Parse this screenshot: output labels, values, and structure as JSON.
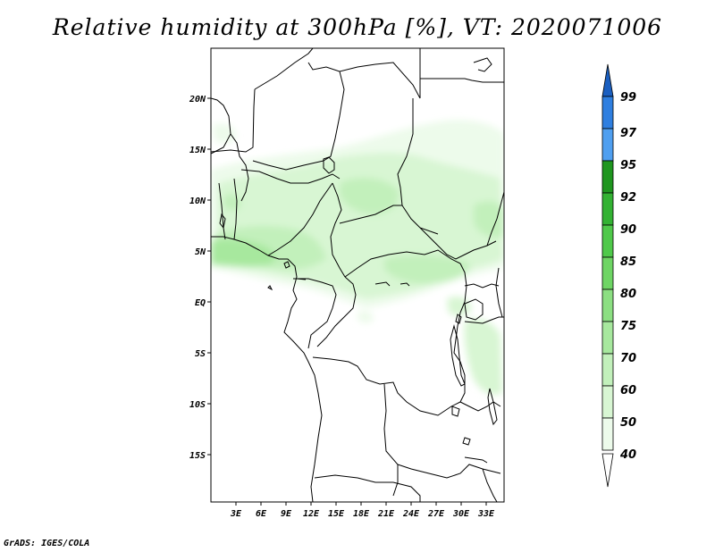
{
  "title": "Relative humidity at 300hPa [%], VT: 2020071006",
  "credit": "GrADS: IGES/COLA",
  "map": {
    "variable": "Relative humidity",
    "level": "300hPa",
    "units": "%",
    "valid_time": "2020071006",
    "lon_ticks": [
      "3E",
      "6E",
      "9E",
      "12E",
      "15E",
      "18E",
      "21E",
      "24E",
      "27E",
      "30E",
      "33E"
    ],
    "lat_ticks": [
      "20N",
      "15N",
      "10N",
      "5N",
      "EQ",
      "5S",
      "10S",
      "15S"
    ]
  },
  "colorbar": {
    "levels": [
      "40",
      "50",
      "60",
      "70",
      "75",
      "80",
      "85",
      "90",
      "92",
      "95",
      "97",
      "99"
    ],
    "colors": {
      "below_40": "#ffffff",
      "c40_50": "#edfbeb",
      "c50_60": "#d8f6d3",
      "c60_70": "#c2f0bb",
      "c70_75": "#a7e89e",
      "c75_80": "#8cdf82",
      "c80_85": "#6ed564",
      "c85_90": "#4fc94a",
      "c90_92": "#33b233",
      "c92_95": "#1f961f",
      "c95_97": "#4f9ff0",
      "c97_99": "#2f7fe0",
      "above_99": "#1b5fc0"
    }
  }
}
